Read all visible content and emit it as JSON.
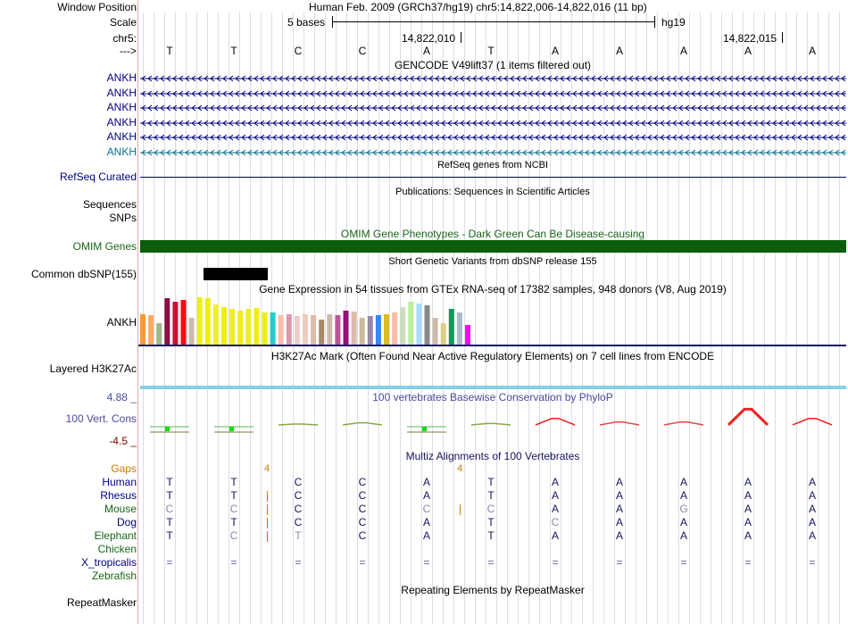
{
  "labels": {
    "window_position": "Window Position",
    "scale": "Scale",
    "chrom": "chr5:",
    "arrow": "--->"
  },
  "header": {
    "assembly_position": "Human Feb. 2009 (GRCh37/hg19)   chr5:14,822,006-14,822,016 (11 bp)",
    "scale_text": "5 bases",
    "scale_db": "hg19",
    "coord_1": "14,822,010",
    "coord_2": "14,822,015"
  },
  "sequence": [
    "T",
    "T",
    "C",
    "C",
    "A",
    "T",
    "A",
    "A",
    "A",
    "A",
    "A"
  ],
  "tracks": {
    "gencode": {
      "title": "GENCODE V49lift37 (1 items filtered out)",
      "items": [
        "ANKH",
        "ANKH",
        "ANKH",
        "ANKH",
        "ANKH",
        "ANKH"
      ]
    },
    "refseq": {
      "title": "RefSeq genes from NCBI",
      "label": "RefSeq Curated"
    },
    "publications": {
      "title": "Publications: Sequences in Scientific Articles",
      "label": "Sequences"
    },
    "snps_label": "SNPs",
    "omim": {
      "title": "OMIM Gene Phenotypes - Dark Green Can Be Disease-causing",
      "label": "OMIM Genes"
    },
    "dbsnp": {
      "title": "Short Genetic Variants from dbSNP release 155",
      "label": "Common dbSNP(155)"
    },
    "gtex": {
      "title": "Gene Expression in 54 tissues from GTEx RNA-seq of 17382 samples, 948 donors (V8, Aug 2019)",
      "label": "ANKH"
    },
    "h3k27ac": {
      "title": "H3K27Ac Mark (Often Found Near Active Regulatory Elements) on 7 cell lines from ENCODE",
      "label": "Layered H3K27Ac"
    },
    "phylop": {
      "title": "100 vertebrates Basewise Conservation by PhyloP",
      "label": "100 Vert. Cons",
      "max_label": "4.88 _",
      "min_label": "-4.5 _"
    },
    "multiz": {
      "title": "Multiz Alignments of 100 Vertebrates",
      "gaps_label": "Gaps",
      "gap_counts": [
        "4",
        "4"
      ],
      "species": [
        {
          "name": "Human",
          "bases": [
            "T",
            "T",
            "C",
            "C",
            "A",
            "T",
            "A",
            "A",
            "A",
            "A",
            "A"
          ]
        },
        {
          "name": "Rhesus",
          "bases": [
            "T",
            "T",
            "C",
            "C",
            "A",
            "T",
            "A",
            "A",
            "A",
            "A",
            "A"
          ]
        },
        {
          "name": "Mouse",
          "bases": [
            "C",
            "C",
            "C",
            "C",
            "C",
            "C",
            "A",
            "A",
            "G",
            "A",
            "A"
          ]
        },
        {
          "name": "Dog",
          "bases": [
            "T",
            "T",
            "C",
            "C",
            "A",
            "T",
            "C",
            "A",
            "A",
            "A",
            "A"
          ]
        },
        {
          "name": "Elephant",
          "bases": [
            "T",
            "C",
            "T",
            "C",
            "A",
            "T",
            "A",
            "A",
            "A",
            "A",
            "A"
          ]
        },
        {
          "name": "Chicken",
          "bases": [
            "",
            "",
            "",
            "",
            "",
            "",
            "",
            "",
            "",
            "",
            ""
          ]
        },
        {
          "name": "X_tropicalis",
          "bases": [
            "=",
            "=",
            "=",
            "=",
            "=",
            "=",
            "=",
            "=",
            "=",
            "=",
            "="
          ]
        },
        {
          "name": "Zebrafish",
          "bases": [
            "",
            "",
            "",
            "",
            "",
            "",
            "",
            "",
            "",
            "",
            ""
          ]
        }
      ]
    },
    "repeatmasker": {
      "title": "Repeating Elements by RepeatMasker",
      "label": "RepeatMasker"
    }
  },
  "colors": {
    "gene_navy": "#000080",
    "gene_teal": "#0a6e8e",
    "omim_green": "#0b5d0b",
    "label_green": "#196619",
    "phylop_blue": "#4a4aa0",
    "phylop_neg": "#800000",
    "gaps_orange": "#cc7a00",
    "multiz_navy": "#141460",
    "h3k27ac_blue": "#87ceeb",
    "grid_line": "#dcdce8"
  },
  "gtex_colors": [
    "#ff9933",
    "#ffaa66",
    "#99bb88",
    "#881144",
    "#cc1133",
    "#ee1111",
    "#ccbbaa",
    "#eeee22",
    "#eeee11",
    "#eeee33",
    "#eeee11",
    "#eeee22",
    "#eeee11",
    "#eeee22",
    "#eeee11",
    "#eeee11",
    "#22cccc",
    "#ffbbaa",
    "#dd99aa",
    "#eecccc",
    "#eeccbb",
    "#ddbbaa",
    "#aa8866",
    "#ccbbaa",
    "#bb5599",
    "#991177",
    "#ddbbaa",
    "#ccbb99",
    "#9988aa",
    "#3388ff",
    "#ddbb22",
    "#ffbbaa",
    "#ccddbb",
    "#bbee99",
    "#aaddff",
    "#888888",
    "#ccbbaa",
    "#ddcc88",
    "#119955",
    "#aabbcc",
    "#ee11ee"
  ],
  "gtex_values": [
    34,
    33,
    24,
    52,
    48,
    50,
    30,
    53,
    52,
    45,
    42,
    40,
    38,
    40,
    41,
    36,
    36,
    33,
    34,
    32,
    34,
    33,
    28,
    34,
    33,
    38,
    37,
    30,
    32,
    33,
    34,
    36,
    42,
    48,
    46,
    44,
    30,
    24,
    40,
    36,
    22
  ],
  "phylop_scores": [
    -0.8,
    -0.6,
    0.0,
    0.3,
    -0.5,
    0.2,
    0.9,
    0.4,
    0.4,
    2.2,
    0.9
  ]
}
